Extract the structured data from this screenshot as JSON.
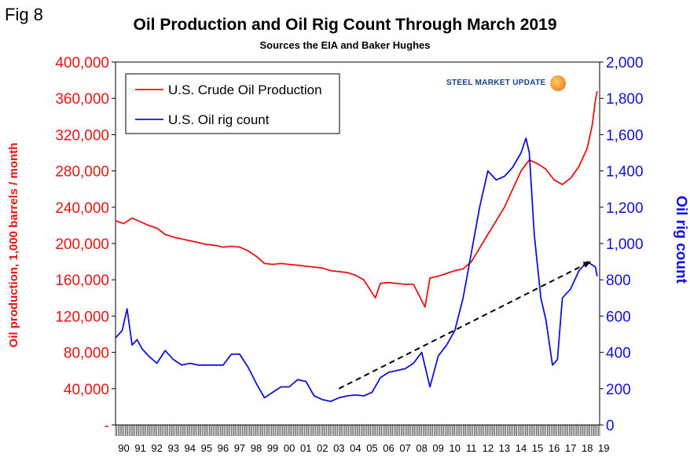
{
  "figure": {
    "fig_label": "Fig 8",
    "title": "Oil Production and Oil Rig Count Through March 2019",
    "subtitle": "Sources the EIA and Baker Hughes",
    "logo_text": "STEEL MARKET UPDATE"
  },
  "chart_data": {
    "type": "line",
    "title": "Oil Production and Oil Rig Count Through March 2019",
    "subtitle": "Sources the EIA and Baker Hughes",
    "ylabel_left": "Oil production, 1,000 barrels / month",
    "ylabel_right": "Oil rig count",
    "ylim_left": [
      0,
      400000
    ],
    "ylim_right": [
      0,
      2000
    ],
    "xlim": [
      1990,
      2019.25
    ],
    "left_ticks": [
      {
        "value": 0,
        "label": "-"
      },
      {
        "value": 40000,
        "label": "40,000"
      },
      {
        "value": 80000,
        "label": "80,000"
      },
      {
        "value": 120000,
        "label": "120,000"
      },
      {
        "value": 160000,
        "label": "160,000"
      },
      {
        "value": 200000,
        "label": "200,000"
      },
      {
        "value": 240000,
        "label": "240,000"
      },
      {
        "value": 280000,
        "label": "280,000"
      },
      {
        "value": 320000,
        "label": "320,000"
      },
      {
        "value": 360000,
        "label": "360,000"
      },
      {
        "value": 400000,
        "label": "400,000"
      }
    ],
    "right_ticks": [
      {
        "value": 0,
        "label": "0"
      },
      {
        "value": 200,
        "label": "200"
      },
      {
        "value": 400,
        "label": "400"
      },
      {
        "value": 600,
        "label": "600"
      },
      {
        "value": 800,
        "label": "800"
      },
      {
        "value": 1000,
        "label": "1,000"
      },
      {
        "value": 1200,
        "label": "1,200"
      },
      {
        "value": 1400,
        "label": "1,400"
      },
      {
        "value": 1600,
        "label": "1,600"
      },
      {
        "value": 1800,
        "label": "1,800"
      },
      {
        "value": 2000,
        "label": "2,000"
      }
    ],
    "x_tick_labels": [
      "90",
      "91",
      "92",
      "93",
      "94",
      "95",
      "96",
      "97",
      "98",
      "99",
      "00",
      "01",
      "02",
      "03",
      "04",
      "05",
      "06",
      "07",
      "08",
      "09",
      "10",
      "11",
      "12",
      "13",
      "14",
      "15",
      "16",
      "17",
      "18",
      "19"
    ],
    "legend_position": "top-left",
    "series": [
      {
        "name": "U.S. Crude Oil Production",
        "axis": "left",
        "color": "#ee1111",
        "x": [
          1990,
          1990.5,
          1991,
          1991.5,
          1992,
          1992.5,
          1993,
          1993.5,
          1994,
          1994.5,
          1995,
          1995.5,
          1996,
          1996.5,
          1997,
          1997.5,
          1998,
          1998.5,
          1999,
          1999.5,
          2000,
          2000.5,
          2001,
          2001.5,
          2002,
          2002.5,
          2003,
          2003.5,
          2004,
          2004.5,
          2005,
          2005.7,
          2006,
          2006.5,
          2007,
          2007.5,
          2008,
          2008.7,
          2009,
          2009.5,
          2010,
          2010.5,
          2011,
          2011.5,
          2012,
          2012.5,
          2013,
          2013.5,
          2014,
          2014.5,
          2015,
          2015.5,
          2016,
          2016.5,
          2017,
          2017.5,
          2018,
          2018.5,
          2018.8,
          2019,
          2019.1
        ],
        "y": [
          225000,
          222000,
          228000,
          224000,
          220000,
          217000,
          210000,
          207000,
          205000,
          203000,
          201000,
          199000,
          198000,
          196000,
          197000,
          196000,
          192000,
          186000,
          178000,
          177000,
          178000,
          177000,
          176000,
          175000,
          174000,
          173000,
          170000,
          169000,
          168000,
          165000,
          160000,
          140000,
          156000,
          157000,
          156000,
          155000,
          155000,
          130000,
          162000,
          164000,
          167000,
          170000,
          172000,
          180000,
          195000,
          210000,
          225000,
          240000,
          260000,
          280000,
          292000,
          288000,
          282000,
          270000,
          265000,
          272000,
          285000,
          305000,
          330000,
          358000,
          368000
        ]
      },
      {
        "name": "U.S. Oil rig count",
        "axis": "right",
        "color": "#1010e0",
        "x": [
          1990,
          1990.4,
          1990.7,
          1991,
          1991.3,
          1991.6,
          1992,
          1992.5,
          1993,
          1993.5,
          1994,
          1994.5,
          1995,
          1995.5,
          1996,
          1996.5,
          1997,
          1997.5,
          1998,
          1998.5,
          1999,
          1999.5,
          2000,
          2000.5,
          2001,
          2001.5,
          2002,
          2002.5,
          2003,
          2003.5,
          2004,
          2004.5,
          2005,
          2005.5,
          2006,
          2006.5,
          2007,
          2007.5,
          2008,
          2008.5,
          2009,
          2009.5,
          2010,
          2010.5,
          2011,
          2011.5,
          2012,
          2012.5,
          2013,
          2013.5,
          2014,
          2014.5,
          2014.8,
          2015,
          2015.3,
          2015.7,
          2016,
          2016.4,
          2016.7,
          2017,
          2017.5,
          2018,
          2018.5,
          2019,
          2019.1
        ],
        "y": [
          480,
          520,
          640,
          440,
          470,
          420,
          380,
          340,
          410,
          360,
          330,
          340,
          330,
          330,
          330,
          330,
          390,
          390,
          320,
          230,
          150,
          180,
          210,
          210,
          250,
          240,
          160,
          140,
          130,
          150,
          160,
          165,
          160,
          180,
          260,
          290,
          300,
          310,
          340,
          400,
          210,
          380,
          440,
          520,
          700,
          950,
          1200,
          1400,
          1350,
          1370,
          1420,
          1500,
          1580,
          1500,
          1050,
          700,
          580,
          330,
          360,
          700,
          750,
          850,
          900,
          870,
          820
        ]
      }
    ],
    "annotations": [
      {
        "type": "trend-arrow",
        "style": "dashed",
        "color": "#000000",
        "axis": "right",
        "from": {
          "x": 2003.5,
          "y": 200
        },
        "to": {
          "x": 2018.7,
          "y": 900
        }
      }
    ]
  }
}
